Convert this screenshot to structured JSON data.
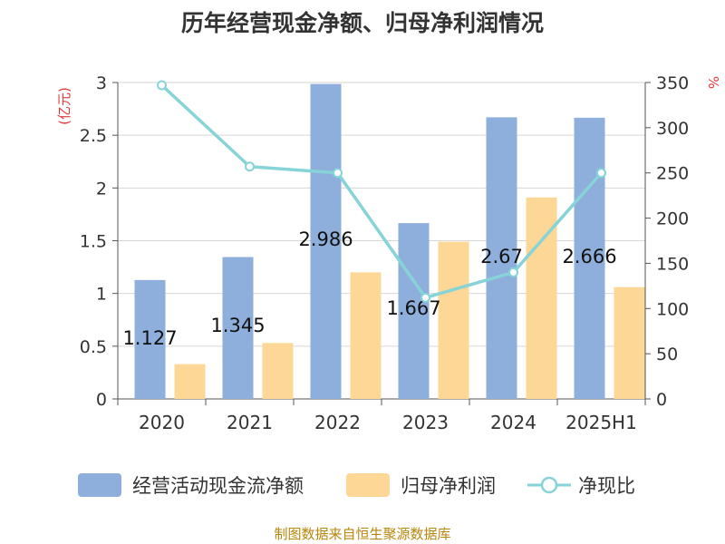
{
  "title": "历年经营现金净额、归母净利润情况",
  "source": "制图数据来自恒生聚源数据库",
  "colors": {
    "cash_flow": "#8eaedb",
    "net_profit": "#fdd795",
    "ratio": "#86d3d8",
    "axis_unit": "#e23a3a",
    "text": "#333333",
    "grid": "#d6d6d6"
  },
  "chart_data": {
    "type": "bar",
    "title": "历年经营现金净额、归母净利润情况",
    "categories": [
      "2020",
      "2021",
      "2022",
      "2023",
      "2024",
      "2025H1"
    ],
    "series": [
      {
        "name": "经营活动现金流净额",
        "type": "bar",
        "axis": "left",
        "values": [
          1.127,
          1.345,
          2.986,
          1.667,
          2.67,
          2.666
        ],
        "data_labels": [
          "1.127",
          "1.345",
          "2.986",
          "1.667",
          "2.67",
          "2.666"
        ]
      },
      {
        "name": "归母净利润",
        "type": "bar",
        "axis": "left",
        "values": [
          0.33,
          0.53,
          1.2,
          1.49,
          1.91,
          1.06
        ]
      },
      {
        "name": "净现比",
        "type": "line",
        "axis": "right",
        "values": [
          347,
          257,
          250,
          112,
          140,
          250
        ]
      }
    ],
    "ylabel_left": "(亿元)",
    "ylabel_right": "%",
    "ylim_left": [
      0,
      3
    ],
    "ylim_right": [
      0,
      350
    ],
    "yticks_left": [
      "0",
      "0.5",
      "1",
      "1.5",
      "2",
      "2.5",
      "3"
    ],
    "yticks_right": [
      "0",
      "50",
      "100",
      "150",
      "200",
      "250",
      "300",
      "350"
    ],
    "grid": true,
    "legend_position": "bottom"
  }
}
